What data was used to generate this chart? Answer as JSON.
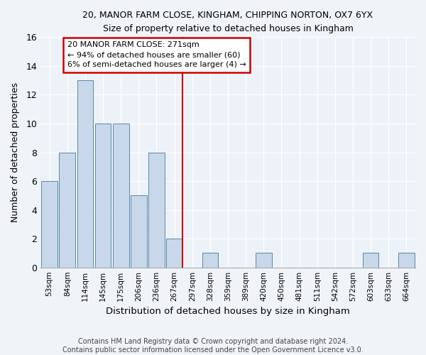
{
  "title": "20, MANOR FARM CLOSE, KINGHAM, CHIPPING NORTON, OX7 6YX",
  "subtitle": "Size of property relative to detached houses in Kingham",
  "xlabel": "Distribution of detached houses by size in Kingham",
  "ylabel": "Number of detached properties",
  "bin_labels": [
    "53sqm",
    "84sqm",
    "114sqm",
    "145sqm",
    "175sqm",
    "206sqm",
    "236sqm",
    "267sqm",
    "297sqm",
    "328sqm",
    "359sqm",
    "389sqm",
    "420sqm",
    "450sqm",
    "481sqm",
    "511sqm",
    "542sqm",
    "572sqm",
    "603sqm",
    "633sqm",
    "664sqm"
  ],
  "bar_values": [
    6,
    8,
    13,
    10,
    10,
    5,
    8,
    2,
    0,
    1,
    0,
    0,
    1,
    0,
    0,
    0,
    0,
    0,
    1,
    0,
    1
  ],
  "bar_color": "#c8d8ea",
  "bar_edge_color": "#5588aa",
  "subject_bin_index": 7,
  "subject_line_color": "#cc0000",
  "annotation_text": "20 MANOR FARM CLOSE: 271sqm\n← 94% of detached houses are smaller (60)\n6% of semi-detached houses are larger (4) →",
  "annotation_box_color": "white",
  "annotation_box_edge_color": "#cc0000",
  "ylim": [
    0,
    16
  ],
  "yticks": [
    0,
    2,
    4,
    6,
    8,
    10,
    12,
    14,
    16
  ],
  "footer": "Contains HM Land Registry data © Crown copyright and database right 2024.\nContains public sector information licensed under the Open Government Licence v3.0.",
  "bg_color": "#f0f4f8",
  "plot_bg_color": "#edf2f8"
}
